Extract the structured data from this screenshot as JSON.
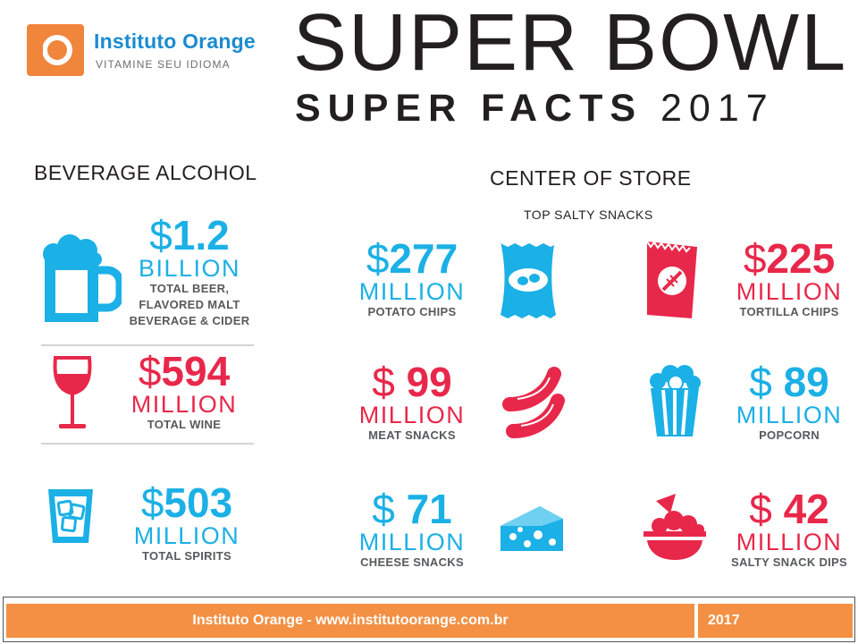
{
  "logo": {
    "name": "Instituto Orange",
    "tagline": "VITAMINE SEU IDIOMA"
  },
  "title": {
    "line1": "SUPER BOWL",
    "line2_bold": "SUPER FACTS",
    "line2_year": "2017"
  },
  "beverage": {
    "heading": "BEVERAGE ALCOHOL",
    "items": [
      {
        "icon": "beer-mug-icon",
        "amount": "$1.2",
        "dollar": "$",
        "number": "1.2",
        "unit": "BILLION",
        "desc": [
          "TOTAL BEER,",
          "FLAVORED MALT",
          "BEVERAGE & CIDER"
        ],
        "color": "#1bb0e6"
      },
      {
        "icon": "wine-glass-icon",
        "amount": "$594",
        "dollar": "$",
        "number": "594",
        "unit": "MILLION",
        "desc": [
          "TOTAL WINE"
        ],
        "color": "#e8284a"
      },
      {
        "icon": "ice-glass-icon",
        "amount": "$503",
        "dollar": "$",
        "number": "503",
        "unit": "MILLION",
        "desc": [
          "TOTAL SPIRITS"
        ],
        "color": "#1bb0e6"
      }
    ]
  },
  "center_store": {
    "heading": "CENTER OF STORE",
    "subheading": "TOP SALTY SNACKS",
    "items": [
      {
        "icon": "potato-chips-bag-icon",
        "dollar": "$",
        "number": "277",
        "unit": "MILLION",
        "desc": "POTATO CHIPS",
        "color": "#1bb0e6"
      },
      {
        "icon": "tortilla-chips-bag-icon",
        "dollar": "$",
        "number": "225",
        "unit": "MILLION",
        "desc": "TORTILLA CHIPS",
        "color": "#e8284a"
      },
      {
        "icon": "meat-sticks-icon",
        "dollar": "$",
        "number": "99",
        "unit": "MILLION",
        "desc": "MEAT SNACKS",
        "color": "#e8284a"
      },
      {
        "icon": "popcorn-icon",
        "dollar": "$",
        "number": "89",
        "unit": "MILLION",
        "desc": "POPCORN",
        "color": "#1bb0e6"
      },
      {
        "icon": "cheese-icon",
        "dollar": "$",
        "number": "71",
        "unit": "MILLION",
        "desc": "CHEESE SNACKS",
        "color": "#1bb0e6"
      },
      {
        "icon": "chip-dip-bowl-icon",
        "dollar": "$",
        "number": "42",
        "unit": "MILLION",
        "desc": "SALTY SNACK DIPS",
        "color": "#e8284a"
      }
    ]
  },
  "footer": {
    "text": "Instituto Orange - www.institutoorange.com.br",
    "year": "2017"
  },
  "colors": {
    "blue": "#1bb0e6",
    "red": "#e8284a",
    "orange": "#f39044"
  }
}
